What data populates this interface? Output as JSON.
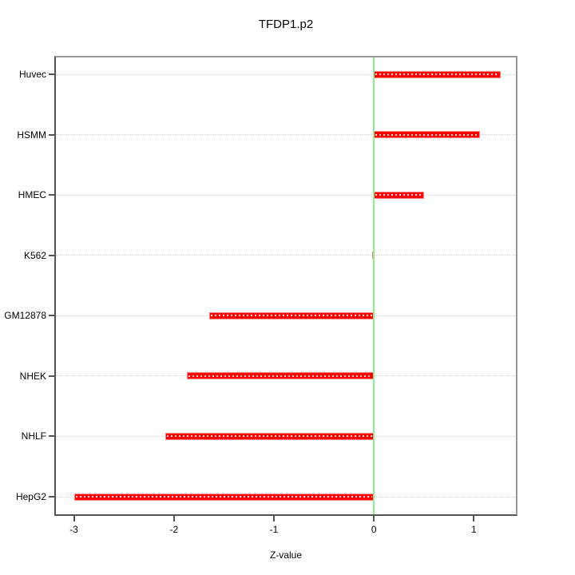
{
  "chart_data": {
    "type": "bar",
    "orientation": "horizontal",
    "title": "TFDP1.p2",
    "xlabel": "Z-value",
    "ylabel": "",
    "categories": [
      "Huvec",
      "HSMM",
      "HMEC",
      "K562",
      "GM12878",
      "NHEK",
      "NHLF",
      "HepG2"
    ],
    "values": [
      1.27,
      1.06,
      0.5,
      -0.02,
      -1.65,
      -1.87,
      -2.09,
      -3.0
    ],
    "xticks": [
      -3,
      -2,
      -1,
      0,
      1
    ],
    "xlim": [
      -3.18,
      1.42
    ],
    "reference_line_x": 0,
    "grid": "dotted horizontal line per category",
    "legend": "none",
    "colors": {
      "bar_fill": "#ff0000",
      "bar_border": "#ff8080",
      "bar_center_dots": "#ffffff",
      "reference_line": "#90ee90",
      "gridline": "#d3d3d3",
      "axis_dark": "#545454",
      "box_light": "#9a9a9a",
      "text": "#000000",
      "background": "#ffffff"
    }
  }
}
